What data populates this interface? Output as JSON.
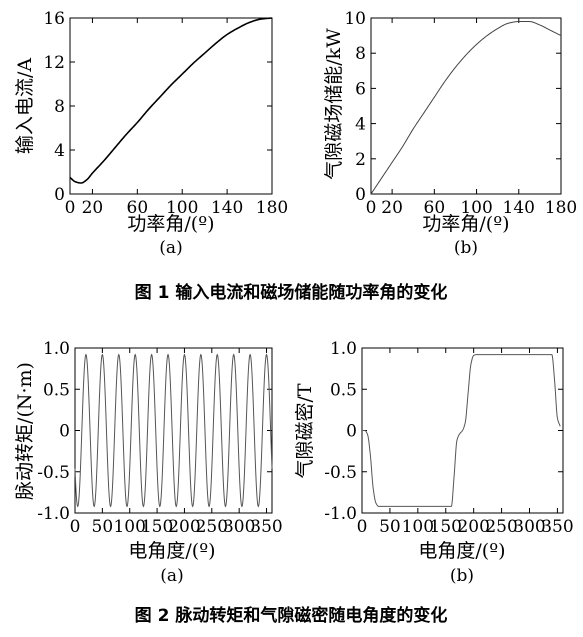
{
  "chart_data": [
    {
      "type": "line",
      "panel": "(a)",
      "xlabel": "功率角/(º)",
      "ylabel": "输入电流/A",
      "xlim": [
        0,
        180
      ],
      "ylim": [
        0,
        16
      ],
      "xticks": [
        "0",
        "20",
        "60",
        "100",
        "140",
        "180"
      ],
      "yticks": [
        "0",
        "4",
        "8",
        "12",
        "16"
      ],
      "x": [
        0,
        5,
        10,
        15,
        20,
        30,
        40,
        50,
        60,
        70,
        80,
        90,
        100,
        110,
        120,
        130,
        140,
        150,
        160,
        170,
        180
      ],
      "series": [
        {
          "values": [
            1.5,
            1.1,
            1.0,
            1.3,
            1.9,
            3.0,
            4.2,
            5.4,
            6.5,
            7.7,
            8.8,
            9.9,
            10.9,
            11.9,
            12.8,
            13.7,
            14.5,
            15.1,
            15.6,
            15.9,
            16.0
          ]
        }
      ]
    },
    {
      "type": "line",
      "panel": "(b)",
      "xlabel": "功率角/(º)",
      "ylabel": "气隙磁场储能/kW",
      "xlim": [
        0,
        180
      ],
      "ylim": [
        0,
        10
      ],
      "xticks": [
        "0",
        "20",
        "60",
        "100",
        "140",
        "180"
      ],
      "yticks": [
        "0",
        "2",
        "4",
        "6",
        "8",
        "10"
      ],
      "x": [
        0,
        10,
        20,
        30,
        40,
        50,
        60,
        70,
        80,
        90,
        100,
        110,
        120,
        130,
        140,
        150,
        160,
        170,
        180
      ],
      "series": [
        {
          "values": [
            0.0,
            0.9,
            1.8,
            2.7,
            3.7,
            4.6,
            5.5,
            6.4,
            7.2,
            7.9,
            8.5,
            9.0,
            9.4,
            9.7,
            9.8,
            9.8,
            9.6,
            9.3,
            9.0
          ]
        }
      ]
    },
    {
      "type": "line",
      "panel": "(a)",
      "xlabel": "电角度/(º)",
      "ylabel": "脉动转矩/(N·m)",
      "xlim": [
        0,
        360
      ],
      "ylim": [
        -1.0,
        1.0
      ],
      "xticks": [
        "0",
        "50",
        "100",
        "150",
        "200",
        "250",
        "300",
        "350"
      ],
      "yticks": [
        "1.0",
        "0.5",
        "0",
        "-0.5",
        "-1.0"
      ],
      "amplitude": 0.92,
      "period_deg": 30,
      "first_peak_deg": 20
    },
    {
      "type": "line",
      "panel": "(b)",
      "xlabel": "电角度/(º)",
      "ylabel": "气隙磁密/T",
      "xlim": [
        0,
        360
      ],
      "ylim": [
        -1.0,
        1.0
      ],
      "xticks": [
        "0",
        "50",
        "100",
        "150",
        "200",
        "250",
        "300",
        "350"
      ],
      "yticks": [
        "1.0",
        "0.5",
        "0",
        "-0.5",
        "-1.0"
      ],
      "x": [
        0,
        5,
        10,
        15,
        20,
        25,
        30,
        35,
        160,
        165,
        170,
        175,
        180,
        185,
        190,
        195,
        200,
        205,
        340,
        345,
        350,
        355
      ],
      "series": [
        {
          "values": [
            0.0,
            0.0,
            -0.05,
            -0.3,
            -0.7,
            -0.88,
            -0.92,
            -0.92,
            -0.92,
            -0.55,
            -0.12,
            -0.04,
            0.0,
            0.1,
            0.45,
            0.8,
            0.91,
            0.92,
            0.92,
            0.6,
            0.15,
            0.05
          ]
        }
      ]
    }
  ],
  "panels": {
    "p1": {
      "sub": "(a)"
    },
    "p2": {
      "sub": "(b)"
    },
    "p3": {
      "sub": "(a)"
    },
    "p4": {
      "sub": "(b)"
    }
  },
  "captions": {
    "fig1": "图 1    输入电流和磁场储能随功率角的变化",
    "fig2": "图 2    脉动转矩和气隙磁密随电角度的变化"
  }
}
